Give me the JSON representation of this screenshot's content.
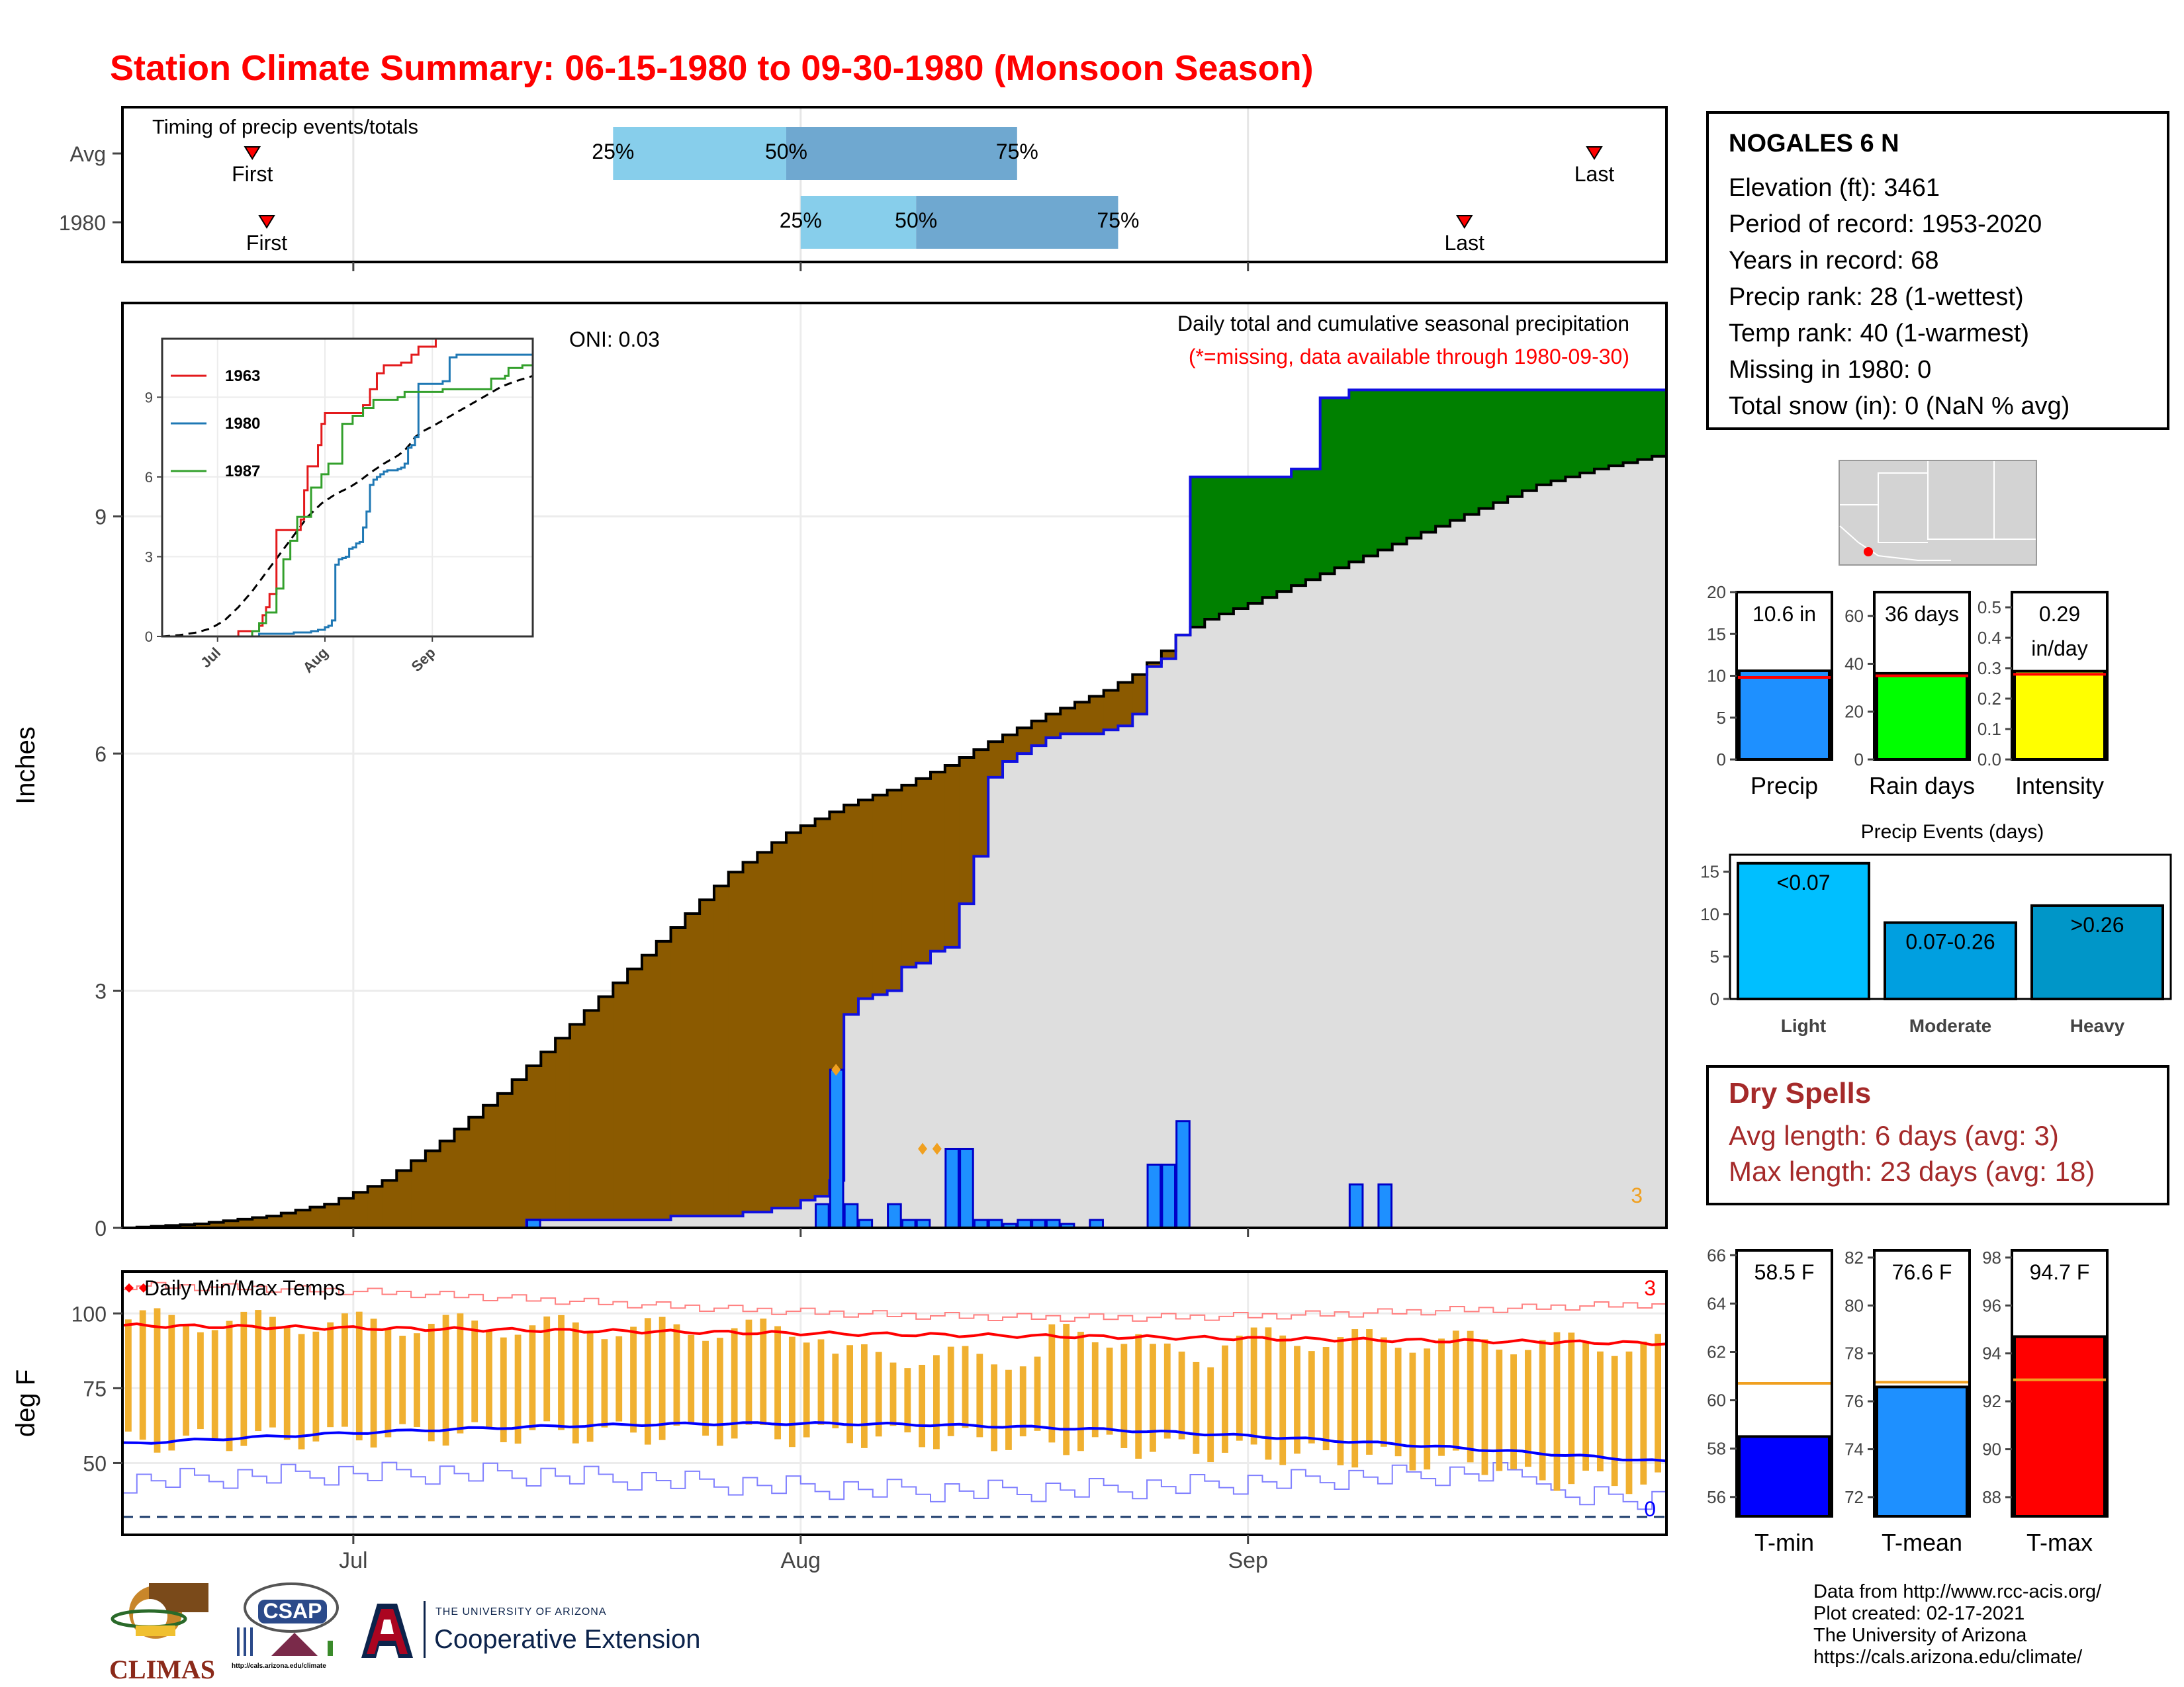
{
  "title": "Station Climate Summary: 06-15-1980 to 09-30-1980 (Monsoon Season)",
  "colors": {
    "title": "#ff0000",
    "deficit": "#8b5a00",
    "surplus": "#008000",
    "avg_fill": "#dedede",
    "daily_bar": "#1e90ff",
    "temp_bar": "#f0b030",
    "max_line": "#ff0000",
    "min_line": "#0000ff",
    "dry": "#a52a2a"
  },
  "station": {
    "name": "NOGALES 6 N",
    "lines": [
      "Elevation (ft): 3461",
      "Period of record: 1953-2020",
      "Years in record: 68",
      "Precip rank: 28 (1-wettest)",
      "Temp rank: 40 (1-warmest)",
      "Missing in 1980: 0",
      "Total snow (in): 0 (NaN % avg)"
    ]
  },
  "dry_spells": {
    "heading": "Dry Spells",
    "avg": "Avg length: 6 days (avg: 3)",
    "max": "Max length: 23 days (avg: 18)"
  },
  "credits": [
    "Data from http://www.rcc-acis.org/",
    "Plot created: 02-17-2021",
    "The University of Arizona",
    "https://cals.arizona.edu/climate/"
  ],
  "logos": {
    "climas": "CLIMAS",
    "csap": "CSAP",
    "csap_url": "http://cals.arizona.edu/climate",
    "ua_small": "THE UNIVERSITY OF ARIZONA",
    "ua_big": "Cooperative Extension"
  },
  "x_axis": {
    "tick_labels": [
      "Jul",
      "Aug",
      "Sep"
    ]
  },
  "chart_data": [
    {
      "type": "timeline",
      "name": "timing",
      "title": "Timing of precip events/totals",
      "rows": [
        {
          "label": "Avg",
          "first": "06-24",
          "q25": "07-19",
          "q50": "07-31",
          "q75": "08-16",
          "last": "09-25"
        },
        {
          "label": "1980",
          "first": "06-25",
          "q25": "08-01",
          "q50": "08-09",
          "q75": "08-23",
          "last": "09-16"
        }
      ],
      "marker_labels": {
        "first": "First",
        "last": "Last",
        "q25": "25%",
        "q50": "50%",
        "q75": "75%"
      }
    },
    {
      "type": "area",
      "name": "cumulative_precip",
      "ylabel": "Inches",
      "yticks": [
        0,
        3,
        6,
        9
      ],
      "ylim": [
        0,
        11.7
      ],
      "xlim_days": [
        0,
        107
      ],
      "annotation": "ONI: 0.03",
      "subtitle": "Daily total and cumulative seasonal precipitation",
      "note": "(*=missing, data available through 1980-09-30)",
      "corner_label": "3",
      "avg_cumulative": [
        [
          0,
          0
        ],
        [
          5,
          0.05
        ],
        [
          10,
          0.15
        ],
        [
          14,
          0.3
        ],
        [
          18,
          0.6
        ],
        [
          22,
          1.1
        ],
        [
          26,
          1.7
        ],
        [
          30,
          2.4
        ],
        [
          34,
          3.1
        ],
        [
          38,
          3.8
        ],
        [
          42,
          4.5
        ],
        [
          46,
          5.0
        ],
        [
          50,
          5.35
        ],
        [
          54,
          5.6
        ],
        [
          57,
          5.85
        ],
        [
          60,
          6.15
        ],
        [
          64,
          6.5
        ],
        [
          68,
          6.8
        ],
        [
          70,
          7.0
        ],
        [
          71,
          7.15
        ],
        [
          72,
          7.3
        ],
        [
          73,
          7.5
        ],
        [
          75,
          7.7
        ],
        [
          78,
          7.9
        ],
        [
          82,
          8.2
        ],
        [
          86,
          8.5
        ],
        [
          90,
          8.8
        ],
        [
          94,
          9.1
        ],
        [
          98,
          9.4
        ],
        [
          102,
          9.6
        ],
        [
          107,
          9.8
        ]
      ],
      "obs_cumulative": [
        [
          0,
          0
        ],
        [
          28,
          0.1
        ],
        [
          36,
          0.1
        ],
        [
          38,
          0.15
        ],
        [
          43,
          0.2
        ],
        [
          45,
          0.25
        ],
        [
          47,
          0.35
        ],
        [
          48,
          0.4
        ],
        [
          49,
          0.6
        ],
        [
          50,
          1.0
        ],
        [
          50,
          2.7
        ],
        [
          51,
          2.9
        ],
        [
          52,
          2.95
        ],
        [
          53,
          3.0
        ],
        [
          54,
          3.3
        ],
        [
          55,
          3.35
        ],
        [
          56,
          3.5
        ],
        [
          57,
          3.55
        ],
        [
          58,
          4.1
        ],
        [
          59,
          4.7
        ],
        [
          60,
          5.7
        ],
        [
          61,
          5.9
        ],
        [
          62,
          6.0
        ],
        [
          63,
          6.1
        ],
        [
          64,
          6.2
        ],
        [
          65,
          6.25
        ],
        [
          68,
          6.3
        ],
        [
          69,
          6.35
        ],
        [
          70,
          6.5
        ],
        [
          71,
          7.1
        ],
        [
          72,
          7.2
        ],
        [
          73,
          7.5
        ],
        [
          74,
          9.5
        ],
        [
          80,
          9.5
        ],
        [
          81,
          9.6
        ],
        [
          82,
          9.6
        ],
        [
          83,
          10.5
        ],
        [
          85,
          10.6
        ],
        [
          107,
          10.6
        ]
      ],
      "daily_bars": [
        [
          28,
          0.1
        ],
        [
          48,
          0.3
        ],
        [
          49,
          2.0
        ],
        [
          50,
          0.3
        ],
        [
          51,
          0.1
        ],
        [
          53,
          0.3
        ],
        [
          54,
          0.1
        ],
        [
          55,
          0.1
        ],
        [
          57,
          1.0
        ],
        [
          58,
          1.0
        ],
        [
          59,
          0.1
        ],
        [
          60,
          0.1
        ],
        [
          61,
          0.05
        ],
        [
          62,
          0.1
        ],
        [
          63,
          0.1
        ],
        [
          64,
          0.1
        ],
        [
          65,
          0.05
        ],
        [
          67,
          0.1
        ],
        [
          71,
          0.8
        ],
        [
          72,
          0.8
        ],
        [
          73,
          1.35
        ],
        [
          85,
          0.55
        ],
        [
          87,
          0.55
        ]
      ],
      "inset": {
        "yticks": [
          0,
          3,
          6,
          9
        ],
        "xticks": [
          "Jul",
          "Aug",
          "Sep"
        ],
        "series": [
          {
            "name": "1963",
            "color": "#e31a1c"
          },
          {
            "name": "1980",
            "color": "#1f78b4"
          },
          {
            "name": "1987",
            "color": "#33a02c"
          }
        ]
      }
    },
    {
      "type": "line",
      "name": "daily_temps",
      "title": "Daily Min/Max Temps",
      "ylabel": "deg F",
      "yticks": [
        50,
        75,
        100
      ],
      "ylim": [
        26,
        114
      ],
      "corner_labels": {
        "top": "3",
        "bottom": "0"
      }
    },
    {
      "type": "bar",
      "name": "season_totals",
      "categories": [
        "Precip",
        "Rain days",
        "Intensity"
      ],
      "values": [
        10.6,
        36,
        0.29
      ],
      "averages": [
        9.8,
        35,
        0.28
      ],
      "value_labels": [
        "10.6 in",
        "36 days",
        "0.29"
      ],
      "extra_label": "in/day",
      "yticks": [
        [
          0,
          5,
          10,
          15,
          20
        ],
        [
          0,
          20,
          40,
          60
        ],
        [
          "0.0",
          "0.1",
          "0.2",
          "0.3",
          "0.4",
          "0.5"
        ]
      ],
      "colors": [
        "#1e90ff",
        "#00ff00",
        "#ffff00"
      ]
    },
    {
      "type": "bar",
      "name": "precip_events",
      "title": "Precip Events (days)",
      "categories": [
        "Light",
        "Moderate",
        "Heavy"
      ],
      "values": [
        16,
        9,
        11
      ],
      "value_labels": [
        "<0.07",
        "0.07-0.26",
        ">0.26"
      ],
      "yticks": [
        0,
        5,
        10,
        15
      ],
      "colors": [
        "#00bfff",
        "#009fe0",
        "#0096c8"
      ]
    },
    {
      "type": "bar",
      "name": "temp_summary",
      "categories": [
        "T-min",
        "T-mean",
        "T-max"
      ],
      "values": [
        58.5,
        76.6,
        94.7
      ],
      "averages": [
        60.7,
        76.8,
        92.9
      ],
      "value_labels": [
        "58.5 F",
        "76.6 F",
        "94.7 F"
      ],
      "yticks": [
        [
          56,
          58,
          60,
          62,
          64,
          66
        ],
        [
          72,
          74,
          76,
          78,
          80,
          82
        ],
        [
          88,
          90,
          92,
          94,
          96,
          98
        ]
      ],
      "colors": [
        "#0000ff",
        "#1e90ff",
        "#ff0000"
      ]
    }
  ]
}
